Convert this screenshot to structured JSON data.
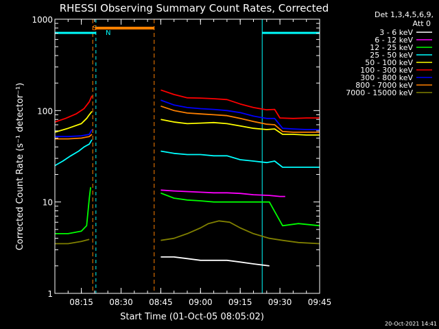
{
  "chart_data": {
    "type": "line",
    "title": "RHESSI Observing Summary Count Rates, Corrected",
    "xlabel": "Start Time (01-Oct-05 08:05:02)",
    "ylabel": "Corrected Count Rate (s⁻¹ detector⁻¹)",
    "yscale": "log",
    "ylim": [
      1,
      1000
    ],
    "xlim_minutes": [
      0,
      100
    ],
    "x_ticks": [
      {
        "label": "08:15",
        "min": 10
      },
      {
        "label": "08:30",
        "min": 25
      },
      {
        "label": "08:45",
        "min": 40
      },
      {
        "label": "09:00",
        "min": 55
      },
      {
        "label": "09:15",
        "min": 70
      },
      {
        "label": "09:30",
        "min": 85
      },
      {
        "label": "09:45",
        "min": 100
      }
    ],
    "y_ticks": [
      {
        "label": "1",
        "value": 1
      },
      {
        "label": "10",
        "value": 10
      },
      {
        "label": "100",
        "value": 100
      },
      {
        "label": "1000",
        "value": 1000
      }
    ],
    "legend": {
      "header1": "Det 1,3,4,5,6,9,",
      "header2": "Att 0",
      "placement": "right"
    },
    "series": [
      {
        "name": "3 - 6 keV",
        "color": "#ffffff",
        "x": [
          40,
          45,
          50,
          55,
          60,
          65,
          70,
          75,
          81
        ],
        "y": [
          2.5,
          2.5,
          2.4,
          2.3,
          2.3,
          2.3,
          2.2,
          2.1,
          2.0
        ]
      },
      {
        "name": "6 - 12 keV",
        "color": "#ff00ff",
        "x": [
          40,
          45,
          50,
          55,
          60,
          65,
          70,
          75,
          81,
          85,
          87
        ],
        "y": [
          13.5,
          13.2,
          13,
          12.8,
          12.6,
          12.6,
          12.4,
          12,
          11.8,
          11.5,
          11.5
        ]
      },
      {
        "name": "12 - 25 keV",
        "color": "#00ff00",
        "x": [
          0,
          5,
          10,
          12,
          13,
          13.5,
          40,
          45,
          50,
          55,
          60,
          65,
          70,
          75,
          81,
          86,
          92,
          100
        ],
        "y": [
          4.5,
          4.5,
          4.8,
          5.5,
          11,
          14.5,
          12.5,
          11,
          10.5,
          10.3,
          10,
          10,
          10,
          10,
          10,
          5.5,
          5.8,
          5.5
        ]
      },
      {
        "name": "25 - 50 keV",
        "color": "#00ffff",
        "x": [
          0,
          3,
          6,
          9,
          11,
          13,
          14,
          40,
          45,
          50,
          55,
          60,
          65,
          70,
          75,
          80,
          83,
          86,
          90,
          95,
          100
        ],
        "y": [
          25,
          28,
          32,
          36,
          40,
          43,
          48,
          36,
          34,
          33,
          33,
          32,
          32,
          29,
          28,
          27,
          28,
          24,
          24,
          24,
          24
        ]
      },
      {
        "name": "50 - 100 keV",
        "color": "#ffff00",
        "x": [
          0,
          5,
          10,
          12,
          13,
          14,
          40,
          45,
          50,
          55,
          60,
          65,
          70,
          75,
          80,
          83,
          86,
          90,
          95,
          100
        ],
        "y": [
          58,
          64,
          72,
          82,
          90,
          98,
          80,
          75,
          72,
          73,
          74,
          72,
          68,
          64,
          62,
          63,
          55,
          55,
          54,
          54
        ]
      },
      {
        "name": "100 - 300 keV",
        "color": "#ff0000",
        "x": [
          0,
          4,
          8,
          11,
          13,
          14,
          40,
          45,
          50,
          55,
          60,
          65,
          70,
          75,
          80,
          83,
          85,
          90,
          95,
          100
        ],
        "y": [
          75,
          82,
          92,
          105,
          125,
          145,
          168,
          150,
          138,
          137,
          135,
          132,
          118,
          108,
          102,
          103,
          83,
          82,
          83,
          83
        ]
      },
      {
        "name": "300 - 800 keV",
        "color": "#0000ff",
        "x": [
          0,
          5,
          10,
          13,
          14,
          40,
          45,
          50,
          55,
          60,
          65,
          70,
          75,
          80,
          83,
          86,
          90,
          95,
          100
        ],
        "y": [
          52,
          52,
          53,
          55,
          62,
          130,
          115,
          108,
          105,
          103,
          100,
          95,
          87,
          82,
          82,
          64,
          63,
          62,
          62
        ]
      },
      {
        "name": "800 - 7000 keV",
        "color": "#ff8000",
        "x": [
          0,
          5,
          10,
          13,
          14,
          40,
          45,
          50,
          55,
          60,
          65,
          70,
          75,
          80,
          83,
          86,
          90,
          95,
          100
        ],
        "y": [
          49,
          49,
          50,
          52,
          55,
          112,
          100,
          94,
          92,
          90,
          88,
          82,
          76,
          71,
          70,
          59,
          58,
          58,
          58
        ]
      },
      {
        "name": "7000 - 15000 keV",
        "color": "#808000",
        "x": [
          0,
          5,
          10,
          13,
          40,
          45,
          50,
          55,
          58,
          62,
          66,
          70,
          75,
          81,
          86,
          92,
          100
        ],
        "y": [
          3.5,
          3.5,
          3.7,
          3.9,
          3.8,
          4.0,
          4.5,
          5.2,
          5.8,
          6.2,
          6.0,
          5.2,
          4.5,
          4.0,
          3.8,
          3.6,
          3.5
        ]
      }
    ],
    "annotations": [
      {
        "label": "S",
        "color": "#ff8000"
      },
      {
        "label": "N",
        "color": "#00ffff"
      }
    ],
    "markers": {
      "cyan_vlines_min": [
        0,
        15.5,
        78.3,
        100
      ],
      "orange_vlines_min": [
        14.3,
        37.5
      ],
      "saa_band_min": [
        15.2,
        37.5
      ],
      "night_bands_min": [
        [
          0,
          15.5
        ],
        [
          78.3,
          100
        ]
      ]
    },
    "timestamp": "20-Oct-2021 14:41"
  }
}
